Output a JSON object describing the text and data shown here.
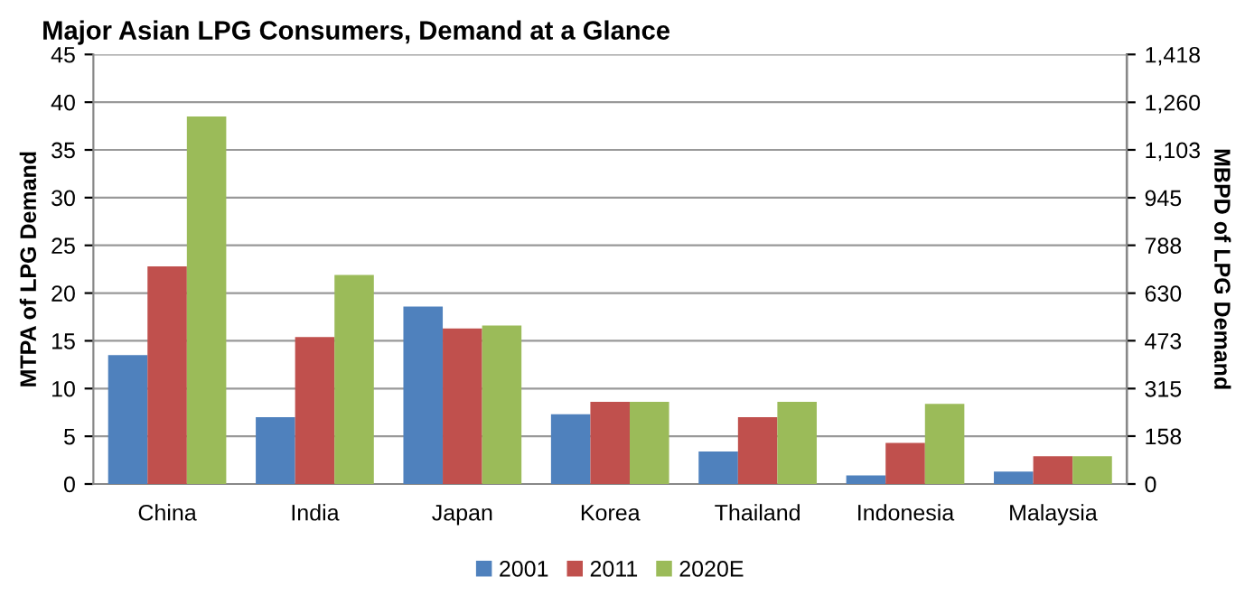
{
  "chart_data": {
    "type": "bar",
    "title": "Major Asian LPG Consumers, Demand at a Glance",
    "ylabel": "MTPA of LPG Demand",
    "y2label": "MBPD of LPG Demand",
    "categories": [
      "China",
      "India",
      "Japan",
      "Korea",
      "Thailand",
      "Indonesia",
      "Malaysia"
    ],
    "series": [
      {
        "name": "2001",
        "color": "#4f81bd",
        "values": [
          13.5,
          7.0,
          18.6,
          7.3,
          3.4,
          0.9,
          1.3
        ]
      },
      {
        "name": "2011",
        "color": "#c0504d",
        "values": [
          22.8,
          15.4,
          16.3,
          8.6,
          7.0,
          4.3,
          2.9
        ]
      },
      {
        "name": "2020E",
        "color": "#9bbb59",
        "values": [
          38.5,
          21.9,
          16.6,
          8.6,
          8.6,
          8.4,
          2.9
        ]
      }
    ],
    "ylim": [
      0,
      45
    ],
    "yticks": [
      0,
      5,
      10,
      15,
      20,
      25,
      30,
      35,
      40,
      45
    ],
    "y2lim": [
      0,
      1418
    ],
    "y2ticks": [
      0,
      158,
      315,
      473,
      630,
      788,
      945,
      {
        "value": 1103,
        "label": "1,103"
      },
      {
        "value": 1260,
        "label": "1,260"
      },
      {
        "value": 1418,
        "label": "1,418"
      }
    ],
    "grid": "y",
    "legend": "bottom"
  }
}
